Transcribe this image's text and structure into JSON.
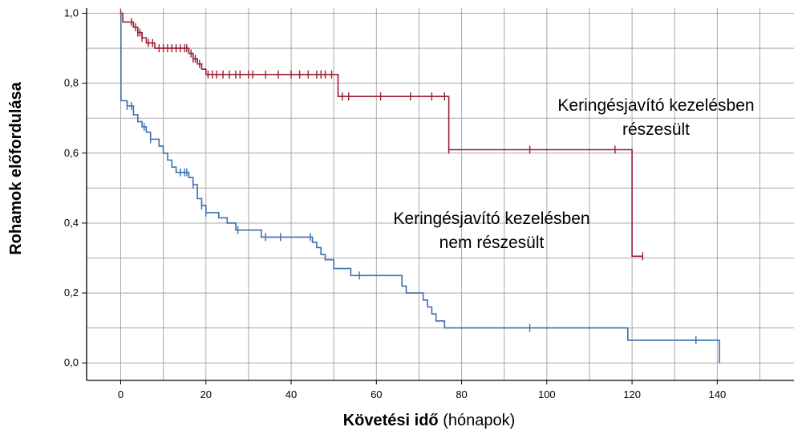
{
  "chart_data": {
    "type": "line",
    "title": "",
    "ylabel": "Rohamok előfordulása",
    "xlabel_bold": "Követési idő",
    "xlabel_rest": "(hónapok)",
    "xlim": [
      -8,
      158
    ],
    "ylim": [
      -0.05,
      1.015
    ],
    "x_ticks": [
      0,
      20,
      40,
      60,
      80,
      100,
      120,
      140
    ],
    "x_tick_labels": [
      "0",
      "20",
      "40",
      "60",
      "80",
      "100",
      "120",
      "140"
    ],
    "y_ticks": [
      0.0,
      0.2,
      0.4,
      0.6,
      0.8,
      1.0
    ],
    "y_tick_labels": [
      "0,0",
      "0,2",
      "0,4",
      "0,6",
      "0,8",
      "1,0"
    ],
    "grid": true,
    "series": [
      {
        "annotation": [
          "Keringésjavító kezelésben",
          "részesült"
        ],
        "color": "#9b1c31",
        "steps": [
          [
            0,
            1.0
          ],
          [
            0.5,
            0.975
          ],
          [
            3,
            0.96
          ],
          [
            4,
            0.945
          ],
          [
            5,
            0.93
          ],
          [
            6,
            0.915
          ],
          [
            8,
            0.9
          ],
          [
            16,
            0.885
          ],
          [
            17,
            0.87
          ],
          [
            18,
            0.855
          ],
          [
            19,
            0.84
          ],
          [
            20,
            0.825
          ],
          [
            51,
            0.762
          ],
          [
            77,
            0.61
          ],
          [
            120,
            0.305
          ],
          [
            122.5,
            0.305
          ]
        ],
        "censored": [
          0,
          2.5,
          3.5,
          4,
          4.5,
          5,
          6.5,
          7.5,
          9,
          10,
          11,
          12,
          13,
          14,
          15,
          15.5,
          16.5,
          17,
          17.5,
          18.5,
          20.5,
          21.5,
          22.5,
          24,
          25.5,
          27,
          28,
          30,
          31,
          34,
          37,
          40,
          42,
          44,
          46,
          47,
          48,
          49.5,
          52,
          53.5,
          61,
          68,
          73,
          76,
          77,
          96,
          116,
          122.5
        ]
      },
      {
        "annotation": [
          "Keringésjavító kezelésben",
          "nem részesült"
        ],
        "color": "#3a6fb0",
        "steps": [
          [
            0,
            1.0
          ],
          [
            0.05,
            0.75
          ],
          [
            1.5,
            0.735
          ],
          [
            3,
            0.71
          ],
          [
            4,
            0.69
          ],
          [
            5,
            0.675
          ],
          [
            6,
            0.66
          ],
          [
            7,
            0.64
          ],
          [
            9,
            0.62
          ],
          [
            10,
            0.6
          ],
          [
            11,
            0.58
          ],
          [
            12,
            0.56
          ],
          [
            13,
            0.545
          ],
          [
            16,
            0.53
          ],
          [
            17,
            0.51
          ],
          [
            18,
            0.47
          ],
          [
            19,
            0.45
          ],
          [
            20,
            0.43
          ],
          [
            23,
            0.415
          ],
          [
            25,
            0.4
          ],
          [
            27,
            0.38
          ],
          [
            33,
            0.36
          ],
          [
            45,
            0.345
          ],
          [
            46,
            0.33
          ],
          [
            47,
            0.31
          ],
          [
            48,
            0.295
          ],
          [
            50,
            0.27
          ],
          [
            54,
            0.25
          ],
          [
            66,
            0.22
          ],
          [
            67,
            0.2
          ],
          [
            71,
            0.18
          ],
          [
            72,
            0.16
          ],
          [
            73,
            0.14
          ],
          [
            74,
            0.12
          ],
          [
            76,
            0.1
          ],
          [
            119,
            0.065
          ],
          [
            140.5,
            0.065
          ],
          [
            140.5,
            0.0
          ]
        ],
        "censored": [
          1.5,
          2.5,
          5.5,
          7,
          14,
          15,
          15.5,
          17,
          19,
          20,
          27.5,
          34,
          37.5,
          44.5,
          56,
          96,
          135
        ]
      }
    ]
  }
}
